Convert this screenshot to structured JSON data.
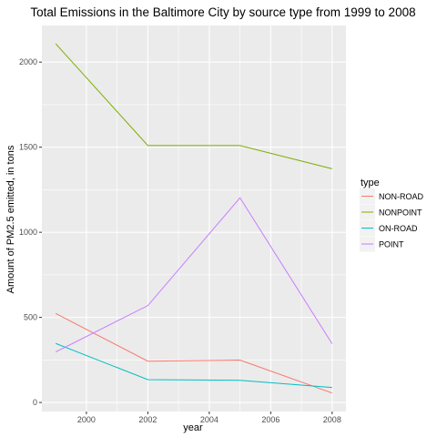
{
  "chart_data": {
    "type": "line",
    "title": "Total Emissions in the Baltimore City by source type from 1999 to 2008",
    "xlabel": "year",
    "ylabel": "Amount of PM2.5 emitted, in tons",
    "x": [
      1999,
      2002,
      2005,
      2008
    ],
    "xlim": [
      1998.55,
      2008.45
    ],
    "ylim": [
      -53,
      2215
    ],
    "x_ticks": [
      2000,
      2002,
      2004,
      2006,
      2008
    ],
    "y_ticks": [
      0,
      500,
      1000,
      1500,
      2000
    ],
    "grid": true,
    "legend": {
      "title": "type",
      "position": "right"
    },
    "series": [
      {
        "name": "NON-ROAD",
        "color": "#F8766D",
        "values": [
          522.9,
          242.8,
          248.9,
          55.8
        ]
      },
      {
        "name": "NONPOINT",
        "color": "#7CAE00",
        "values": [
          2107.6,
          1509.5,
          1509.5,
          1373.2
        ]
      },
      {
        "name": "ON-ROAD",
        "color": "#00BFC4",
        "values": [
          346.8,
          134.3,
          130.4,
          88.3
        ]
      },
      {
        "name": "POINT",
        "color": "#C77CFF",
        "values": [
          296.8,
          569.3,
          1202.5,
          344.98
        ]
      }
    ]
  }
}
